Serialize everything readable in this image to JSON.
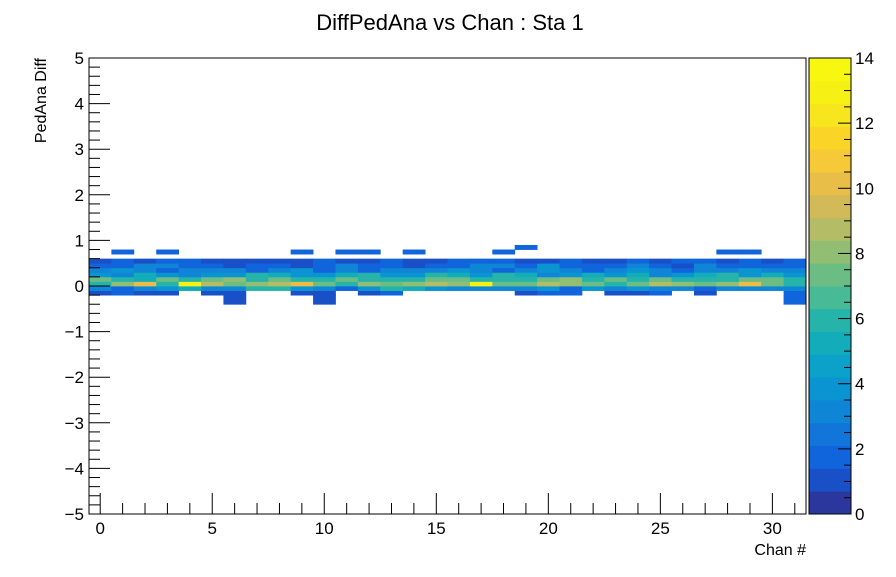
{
  "chart_data": {
    "type": "heatmap",
    "title": "DiffPedAna vs Chan : Sta 1",
    "xlabel": "Chan #",
    "ylabel": "PedAna Diff",
    "xlim": [
      -0.5,
      31.5
    ],
    "ylim": [
      -5,
      5
    ],
    "x_ticks": [
      0,
      5,
      10,
      15,
      20,
      25,
      30
    ],
    "y_ticks": [
      -5,
      -4,
      -3,
      -2,
      -1,
      0,
      1,
      2,
      3,
      4,
      5
    ],
    "y_tick_labels": [
      "−5",
      "−4",
      "−3",
      "−2",
      "−1",
      "0",
      "1",
      "2",
      "3",
      "4",
      "5"
    ],
    "colorbar": {
      "min": 0,
      "max": 14,
      "ticks": [
        0,
        2,
        4,
        6,
        8,
        10,
        12,
        14
      ]
    },
    "x_bin_width": 1,
    "y_bin_width": 0.1,
    "y_bin_lows": [
      -0.4,
      -0.3,
      -0.2,
      -0.1,
      0.0,
      0.1,
      0.2,
      0.3,
      0.4,
      0.5,
      0.7,
      0.8
    ],
    "counts": [
      [
        0,
        0,
        0,
        0,
        0,
        0,
        1,
        0,
        0,
        0,
        1,
        0,
        0,
        0,
        0,
        0,
        0,
        0,
        0,
        0,
        0,
        0,
        0,
        0,
        0,
        0,
        0,
        0,
        0,
        0,
        0,
        2
      ],
      [
        0,
        0,
        0,
        0,
        0,
        0,
        1,
        0,
        0,
        0,
        1,
        0,
        0,
        0,
        0,
        0,
        0,
        0,
        0,
        0,
        0,
        0,
        0,
        0,
        0,
        0,
        0,
        0,
        0,
        0,
        0,
        2
      ],
      [
        1,
        2,
        1,
        1,
        0,
        1,
        1,
        0,
        0,
        1,
        1,
        0,
        1,
        2,
        0,
        0,
        0,
        0,
        0,
        1,
        2,
        2,
        0,
        1,
        1,
        2,
        0,
        1,
        0,
        0,
        0,
        2
      ],
      [
        3,
        2,
        3,
        4,
        5,
        3,
        3,
        6,
        6,
        4,
        3,
        2,
        4,
        6,
        5,
        4,
        3,
        3,
        3,
        3,
        4,
        2,
        4,
        3,
        4,
        3,
        3,
        2,
        3,
        3,
        3,
        3
      ],
      [
        6,
        8,
        10,
        6,
        13,
        9,
        7,
        8,
        9,
        10,
        7,
        6,
        8,
        7,
        8,
        9,
        8,
        13,
        7,
        7,
        9,
        8,
        7,
        6,
        7,
        9,
        8,
        7,
        8,
        10,
        7,
        6
      ],
      [
        7,
        6,
        5,
        7,
        6,
        7,
        8,
        6,
        7,
        6,
        6,
        7,
        6,
        6,
        6,
        7,
        7,
        6,
        6,
        6,
        7,
        8,
        6,
        7,
        6,
        7,
        6,
        6,
        6,
        7,
        7,
        6
      ],
      [
        4,
        3,
        5,
        4,
        3,
        4,
        4,
        6,
        5,
        4,
        4,
        5,
        6,
        4,
        4,
        6,
        5,
        4,
        6,
        5,
        3,
        4,
        5,
        4,
        5,
        3,
        4,
        5,
        6,
        4,
        5,
        4
      ],
      [
        3,
        4,
        3,
        2,
        3,
        3,
        3,
        2,
        3,
        4,
        2,
        3,
        2,
        3,
        3,
        3,
        4,
        3,
        2,
        3,
        4,
        3,
        2,
        3,
        4,
        3,
        2,
        3,
        3,
        4,
        3,
        3
      ],
      [
        2,
        2,
        3,
        3,
        2,
        2,
        1,
        2,
        2,
        1,
        2,
        3,
        2,
        2,
        1,
        2,
        2,
        3,
        3,
        2,
        4,
        2,
        2,
        2,
        3,
        2,
        1,
        3,
        2,
        2,
        2,
        2
      ],
      [
        1,
        2,
        1,
        2,
        2,
        1,
        1,
        1,
        1,
        1,
        2,
        1,
        1,
        2,
        1,
        1,
        2,
        2,
        2,
        1,
        1,
        2,
        1,
        1,
        2,
        1,
        2,
        2,
        1,
        2,
        1,
        2
      ],
      [
        0,
        2,
        0,
        2,
        0,
        0,
        0,
        0,
        0,
        2,
        0,
        2,
        2,
        0,
        2,
        0,
        0,
        0,
        2,
        0,
        0,
        0,
        0,
        0,
        0,
        0,
        0,
        0,
        2,
        2,
        0,
        0
      ],
      [
        0,
        0,
        0,
        0,
        0,
        0,
        0,
        0,
        0,
        0,
        0,
        0,
        0,
        0,
        0,
        0,
        0,
        0,
        0,
        2,
        0,
        0,
        0,
        0,
        0,
        0,
        0,
        0,
        0,
        0,
        0,
        0
      ]
    ]
  }
}
